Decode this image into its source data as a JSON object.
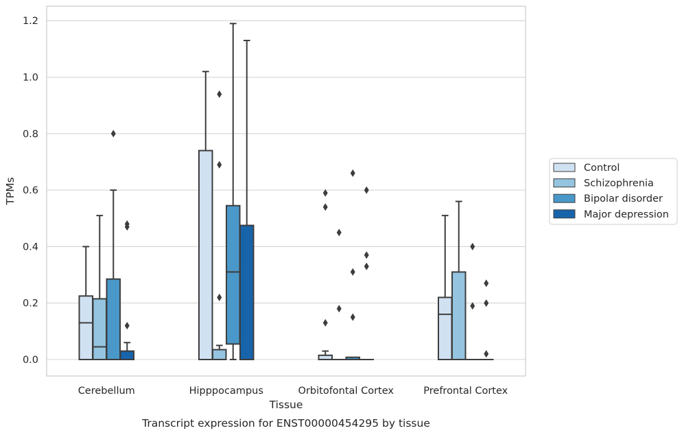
{
  "chart_data": {
    "type": "boxplot",
    "caption": "Transcript expression for ENST00000454295 by tissue",
    "xlabel": "Tissue",
    "ylabel": "TPMs",
    "ylim": [
      -0.06,
      1.25
    ],
    "yticks": [
      "0.0",
      "0.2",
      "0.4",
      "0.6",
      "0.8",
      "1.0",
      "1.2"
    ],
    "grid": true,
    "legend_position": "right",
    "categories": [
      "Cerebellum",
      "Hipppocampus",
      "Orbitofontal Cortex",
      "Prefrontal Cortex"
    ],
    "series": [
      {
        "name": "Control",
        "color": "#d0e1f2",
        "boxes": [
          {
            "q1": 0.0,
            "median": 0.13,
            "q3": 0.225,
            "whisker_low": 0.0,
            "whisker_high": 0.4,
            "outliers": []
          },
          {
            "q1": 0.0,
            "median": 0.0,
            "q3": 0.74,
            "whisker_low": 0.0,
            "whisker_high": 1.02,
            "outliers": []
          },
          {
            "q1": 0.0,
            "median": 0.0,
            "q3": 0.015,
            "whisker_low": 0.0,
            "whisker_high": 0.03,
            "outliers": [
              0.13,
              0.54,
              0.59
            ]
          },
          {
            "q1": 0.0,
            "median": 0.16,
            "q3": 0.22,
            "whisker_low": 0.0,
            "whisker_high": 0.51,
            "outliers": []
          }
        ]
      },
      {
        "name": "Schizophrenia",
        "color": "#94c4df",
        "boxes": [
          {
            "q1": 0.0,
            "median": 0.045,
            "q3": 0.215,
            "whisker_low": 0.0,
            "whisker_high": 0.51,
            "outliers": []
          },
          {
            "q1": 0.0,
            "median": 0.0,
            "q3": 0.035,
            "whisker_low": 0.0,
            "whisker_high": 0.05,
            "outliers": [
              0.22,
              0.69,
              0.94
            ]
          },
          {
            "q1": 0.0,
            "median": 0.0,
            "q3": 0.0,
            "whisker_low": 0.0,
            "whisker_high": 0.0,
            "outliers": [
              0.18,
              0.45
            ]
          },
          {
            "q1": 0.0,
            "median": 0.0,
            "q3": 0.31,
            "whisker_low": 0.0,
            "whisker_high": 0.56,
            "outliers": []
          }
        ]
      },
      {
        "name": "Bipolar disorder",
        "color": "#4a98c9",
        "boxes": [
          {
            "q1": 0.0,
            "median": 0.0,
            "q3": 0.285,
            "whisker_low": 0.0,
            "whisker_high": 0.6,
            "outliers": [
              0.8
            ]
          },
          {
            "q1": 0.055,
            "median": 0.31,
            "q3": 0.545,
            "whisker_low": 0.0,
            "whisker_high": 1.19,
            "outliers": []
          },
          {
            "q1": 0.0,
            "median": 0.0,
            "q3": 0.008,
            "whisker_low": 0.0,
            "whisker_high": 0.008,
            "outliers": [
              0.15,
              0.31,
              0.66
            ]
          },
          {
            "q1": 0.0,
            "median": 0.0,
            "q3": 0.0,
            "whisker_low": 0.0,
            "whisker_high": 0.0,
            "outliers": [
              0.19,
              0.4
            ]
          }
        ]
      },
      {
        "name": "Major depression",
        "color": "#1764ab",
        "boxes": [
          {
            "q1": 0.0,
            "median": 0.0,
            "q3": 0.03,
            "whisker_low": 0.0,
            "whisker_high": 0.06,
            "outliers": [
              0.12,
              0.47,
              0.48
            ]
          },
          {
            "q1": 0.0,
            "median": 0.0,
            "q3": 0.475,
            "whisker_low": 0.0,
            "whisker_high": 1.13,
            "outliers": []
          },
          {
            "q1": 0.0,
            "median": 0.0,
            "q3": 0.0,
            "whisker_low": 0.0,
            "whisker_high": 0.0,
            "outliers": [
              0.33,
              0.37,
              0.6
            ]
          },
          {
            "q1": 0.0,
            "median": 0.0,
            "q3": 0.0,
            "whisker_low": 0.0,
            "whisker_high": 0.0,
            "outliers": [
              0.02,
              0.2,
              0.27
            ]
          }
        ]
      }
    ]
  }
}
